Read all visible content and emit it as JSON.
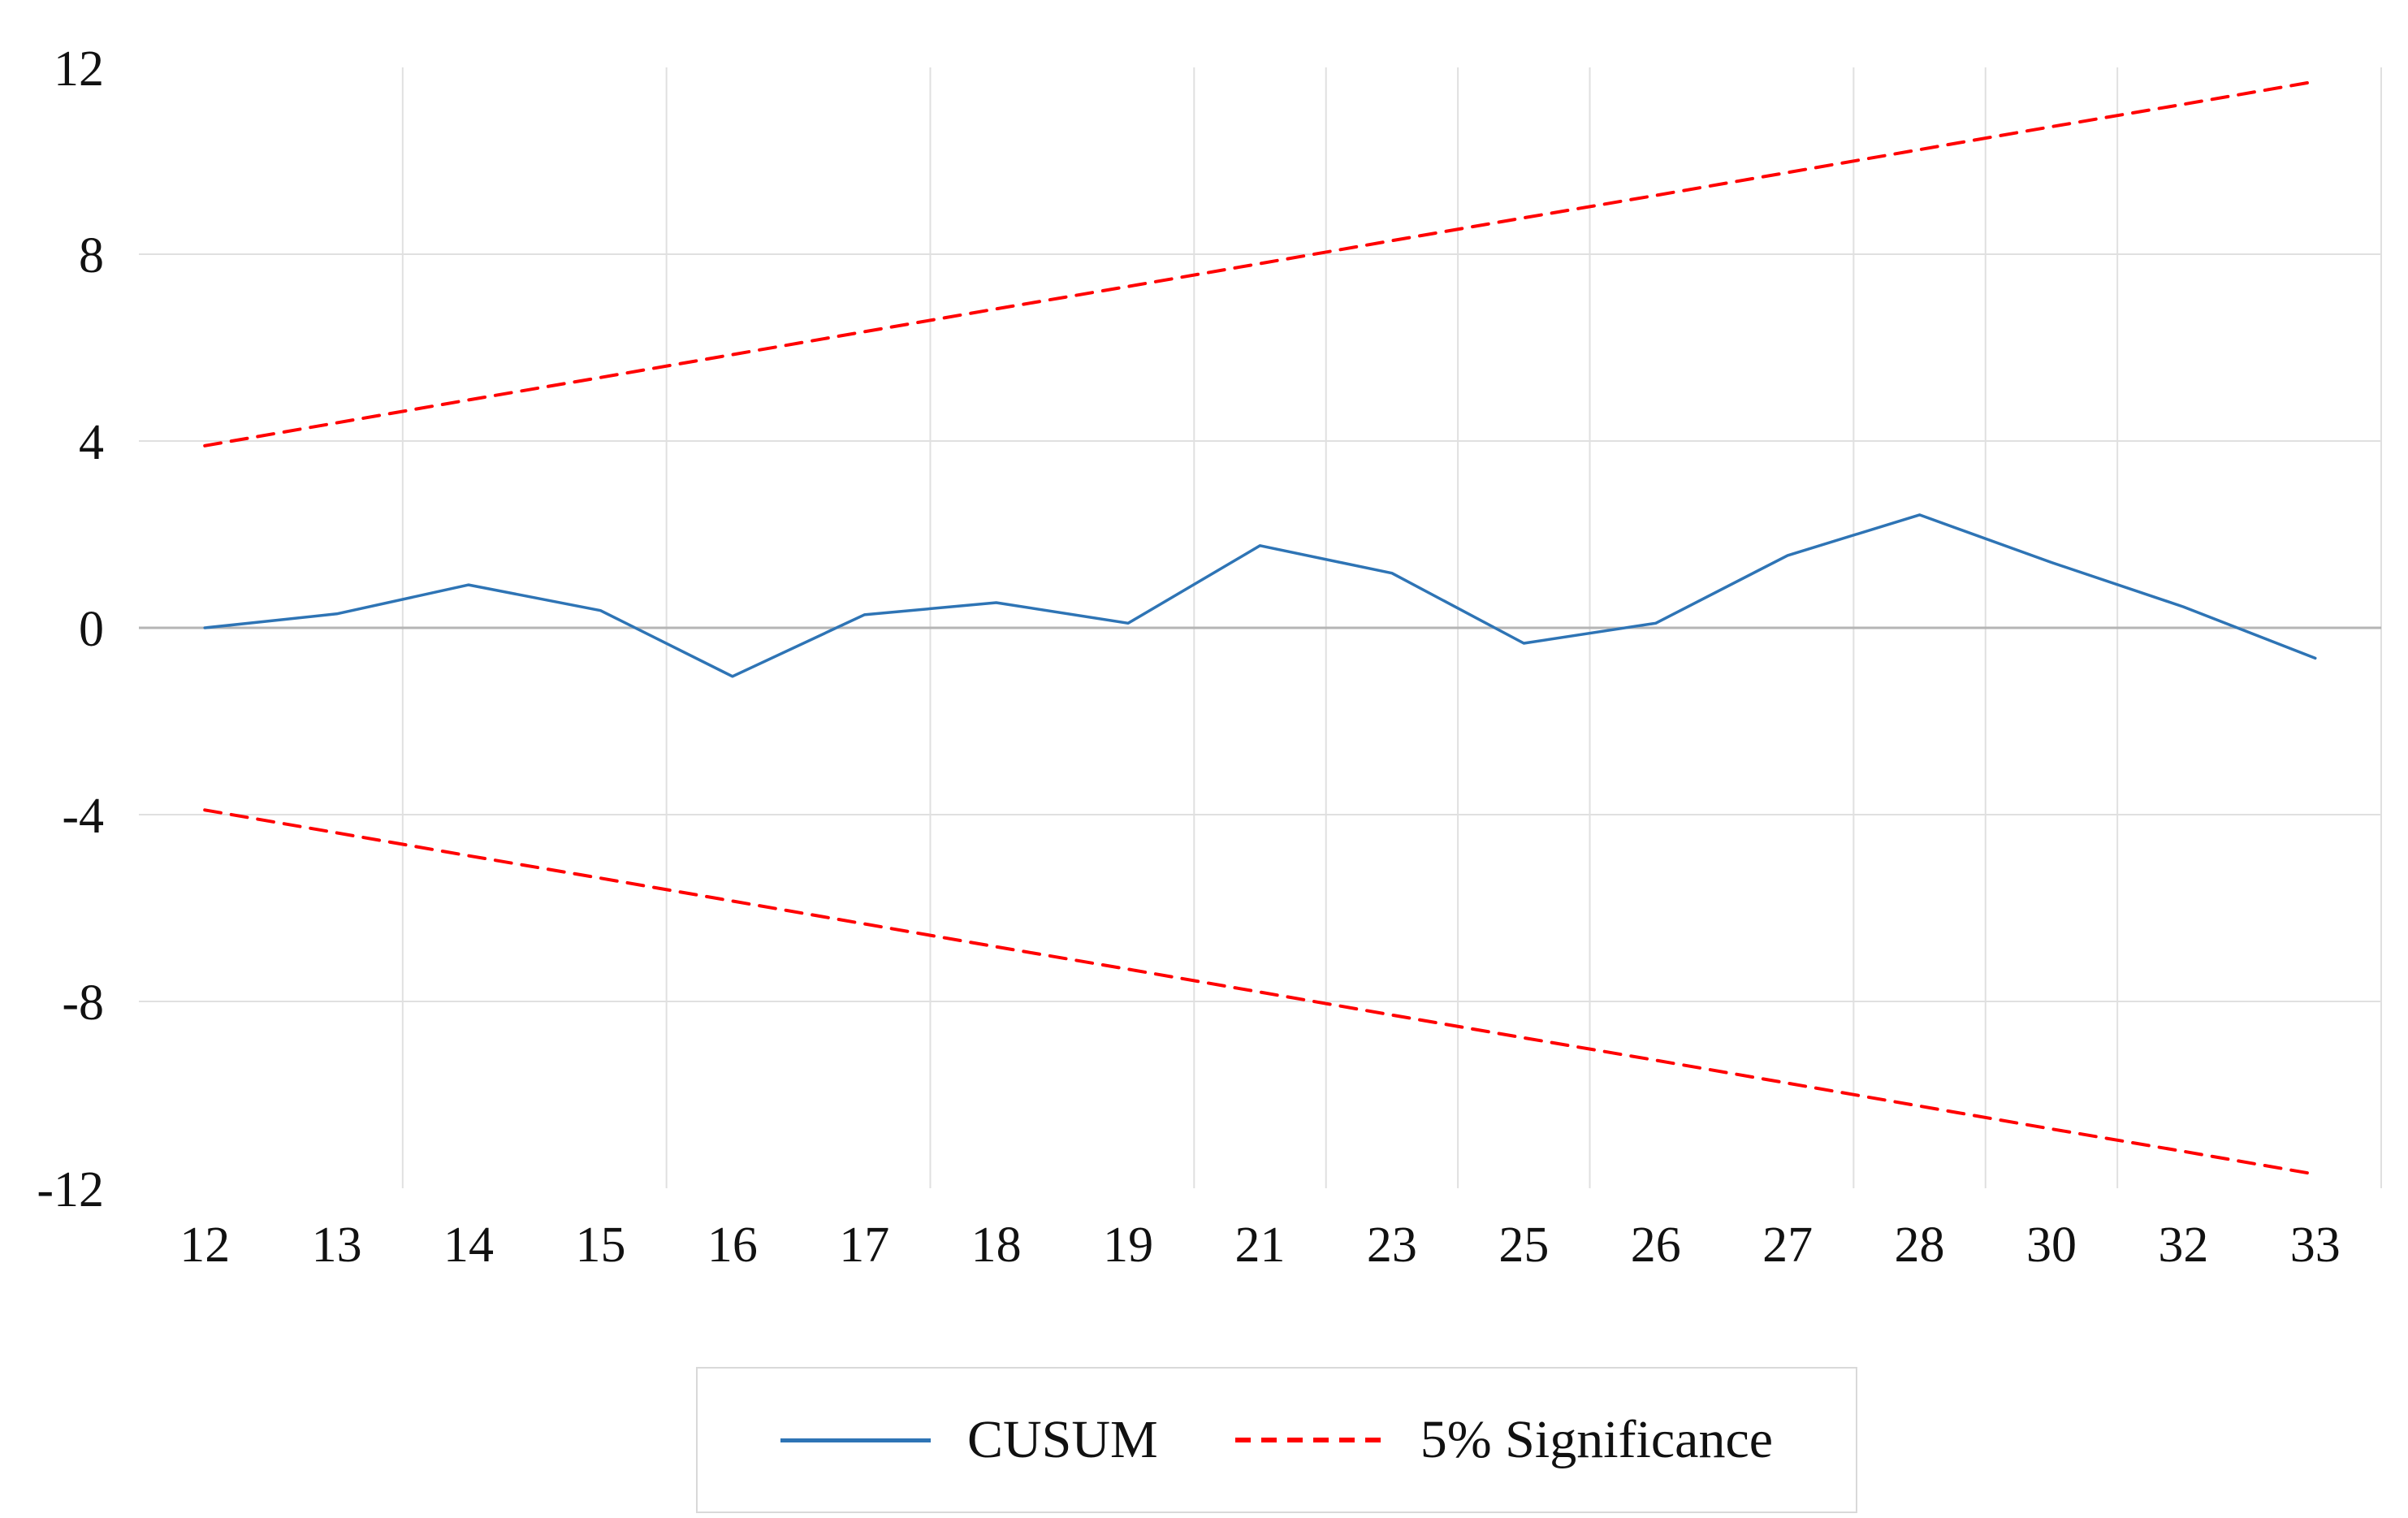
{
  "chart_data": {
    "type": "line",
    "title": "",
    "xlabel": "",
    "ylabel": "",
    "categories": [
      "12",
      "13",
      "14",
      "15",
      "16",
      "17",
      "18",
      "19",
      "21",
      "23",
      "25",
      "26",
      "27",
      "28",
      "30",
      "32",
      "33"
    ],
    "y_ticks": [
      12,
      8,
      4,
      0,
      -4,
      -8,
      -12
    ],
    "ylim": [
      -12,
      12
    ],
    "grid": {
      "horizontal_at": [
        8,
        4,
        -4,
        -8
      ],
      "zero_line_at": 0,
      "vertical_boundary_indices": [
        2,
        4,
        6,
        8,
        9,
        10,
        11,
        13,
        14,
        15,
        17
      ],
      "gridline_color": "#e0e0e0",
      "zero_line_color": "#b5b5b5"
    },
    "legend_position": "bottom",
    "series": [
      {
        "name": "CUSUM",
        "style": "solid",
        "color": "#2e74b5",
        "values": [
          0.0,
          0.3,
          0.92,
          0.37,
          -1.04,
          0.28,
          0.54,
          0.1,
          1.76,
          1.17,
          -0.33,
          0.1,
          1.55,
          2.42,
          1.4,
          0.45,
          -0.65
        ]
      },
      {
        "name": "5% Significance (upper)",
        "style": "dashed",
        "color": "#ff0000",
        "values": [
          3.9,
          4.39,
          4.88,
          5.36,
          5.85,
          6.34,
          6.83,
          7.31,
          7.8,
          8.29,
          8.78,
          9.26,
          9.75,
          10.24,
          10.73,
          11.21,
          11.7
        ]
      },
      {
        "name": "5% Significance (lower)",
        "style": "dashed",
        "color": "#ff0000",
        "values": [
          -3.9,
          -4.39,
          -4.88,
          -5.36,
          -5.85,
          -6.34,
          -6.83,
          -7.31,
          -7.8,
          -8.29,
          -8.78,
          -9.26,
          -9.75,
          -10.24,
          -10.73,
          -11.21,
          -11.7
        ]
      }
    ]
  },
  "legend": {
    "items": [
      {
        "label": "CUSUM",
        "style": "solid",
        "color": "#2e74b5"
      },
      {
        "label": "5% Significance",
        "style": "dashed",
        "color": "#ff0000"
      }
    ]
  }
}
